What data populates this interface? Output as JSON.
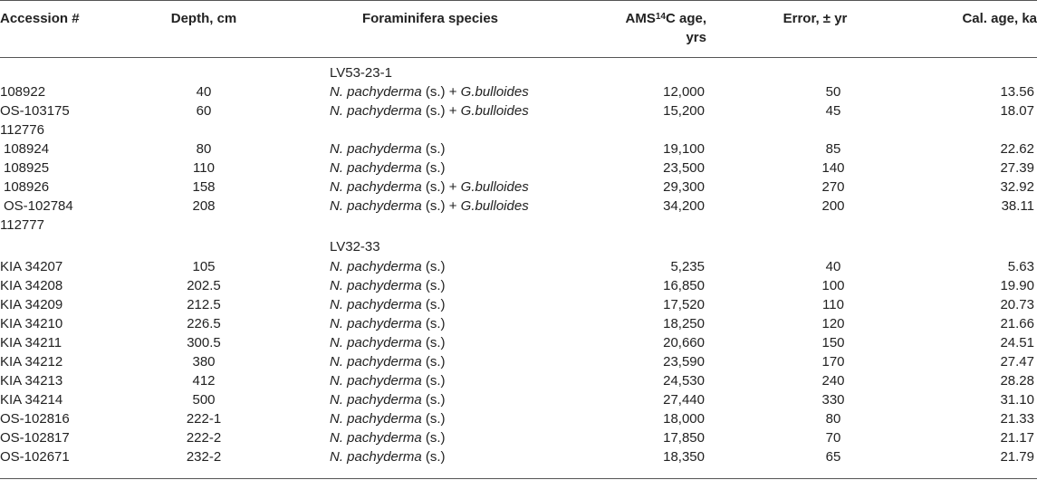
{
  "headers": {
    "accession": "Accession #",
    "depth": "Depth, cm",
    "species": "Foraminifera species",
    "ams_pre": "AMS",
    "ams_sup": "14",
    "ams_post": "C age,",
    "ams_line2": "yrs",
    "error": "Error, ± yr",
    "cal": "Cal. age, ka"
  },
  "species_text": {
    "np": "N. pachyderma",
    "s": " (s.)",
    "plus": " + ",
    "gb": "G.bulloides"
  },
  "sections": {
    "lv53": "LV53-23-1",
    "lv32": "LV32-33"
  },
  "standalone": {
    "a": "112776",
    "b": "112777"
  },
  "rows": [
    {
      "acc": "108922",
      "depth": "40",
      "ams": "12,000",
      "err": "50",
      "cal": "13.56"
    },
    {
      "acc": "OS-103175",
      "depth": "60",
      "ams": "15,200",
      "err": "45",
      "cal": "18.07"
    },
    {
      "acc": "108924",
      "depth": "80",
      "ams": "19,100",
      "err": "85",
      "cal": "22.62"
    },
    {
      "acc": "108925",
      "depth": "110",
      "ams": "23,500",
      "err": "140",
      "cal": "27.39"
    },
    {
      "acc": "108926",
      "depth": "158",
      "ams": "29,300",
      "err": "270",
      "cal": "32.92"
    },
    {
      "acc": "OS-102784",
      "depth": "208",
      "ams": "34,200",
      "err": "200",
      "cal": "38.11"
    },
    {
      "acc": "KIA 34207",
      "depth": "105",
      "ams": "5,235",
      "err": "40",
      "cal": "5.63"
    },
    {
      "acc": "KIA 34208",
      "depth": "202.5",
      "ams": "16,850",
      "err": "100",
      "cal": "19.90"
    },
    {
      "acc": "KIA 34209",
      "depth": "212.5",
      "ams": "17,520",
      "err": "110",
      "cal": "20.73"
    },
    {
      "acc": "KIA 34210",
      "depth": "226.5",
      "ams": "18,250",
      "err": "120",
      "cal": "21.66"
    },
    {
      "acc": "KIA 34211",
      "depth": "300.5",
      "ams": "20,660",
      "err": "150",
      "cal": "24.51"
    },
    {
      "acc": "KIA 34212",
      "depth": "380",
      "ams": "23,590",
      "err": "170",
      "cal": "27.47"
    },
    {
      "acc": "KIA 34213",
      "depth": "412",
      "ams": "24,530",
      "err": "240",
      "cal": "28.28"
    },
    {
      "acc": "KIA 34214",
      "depth": "500",
      "ams": "27,440",
      "err": "330",
      "cal": "31.10"
    },
    {
      "acc": "OS-102816",
      "depth": "222-1",
      "ams": "18,000",
      "err": "80",
      "cal": "21.33"
    },
    {
      "acc": "OS-102817",
      "depth": "222-2",
      "ams": "17,850",
      "err": "70",
      "cal": "21.17"
    },
    {
      "acc": "OS-102671",
      "depth": "232-2",
      "ams": "18,350",
      "err": "65",
      "cal": "21.79"
    }
  ]
}
